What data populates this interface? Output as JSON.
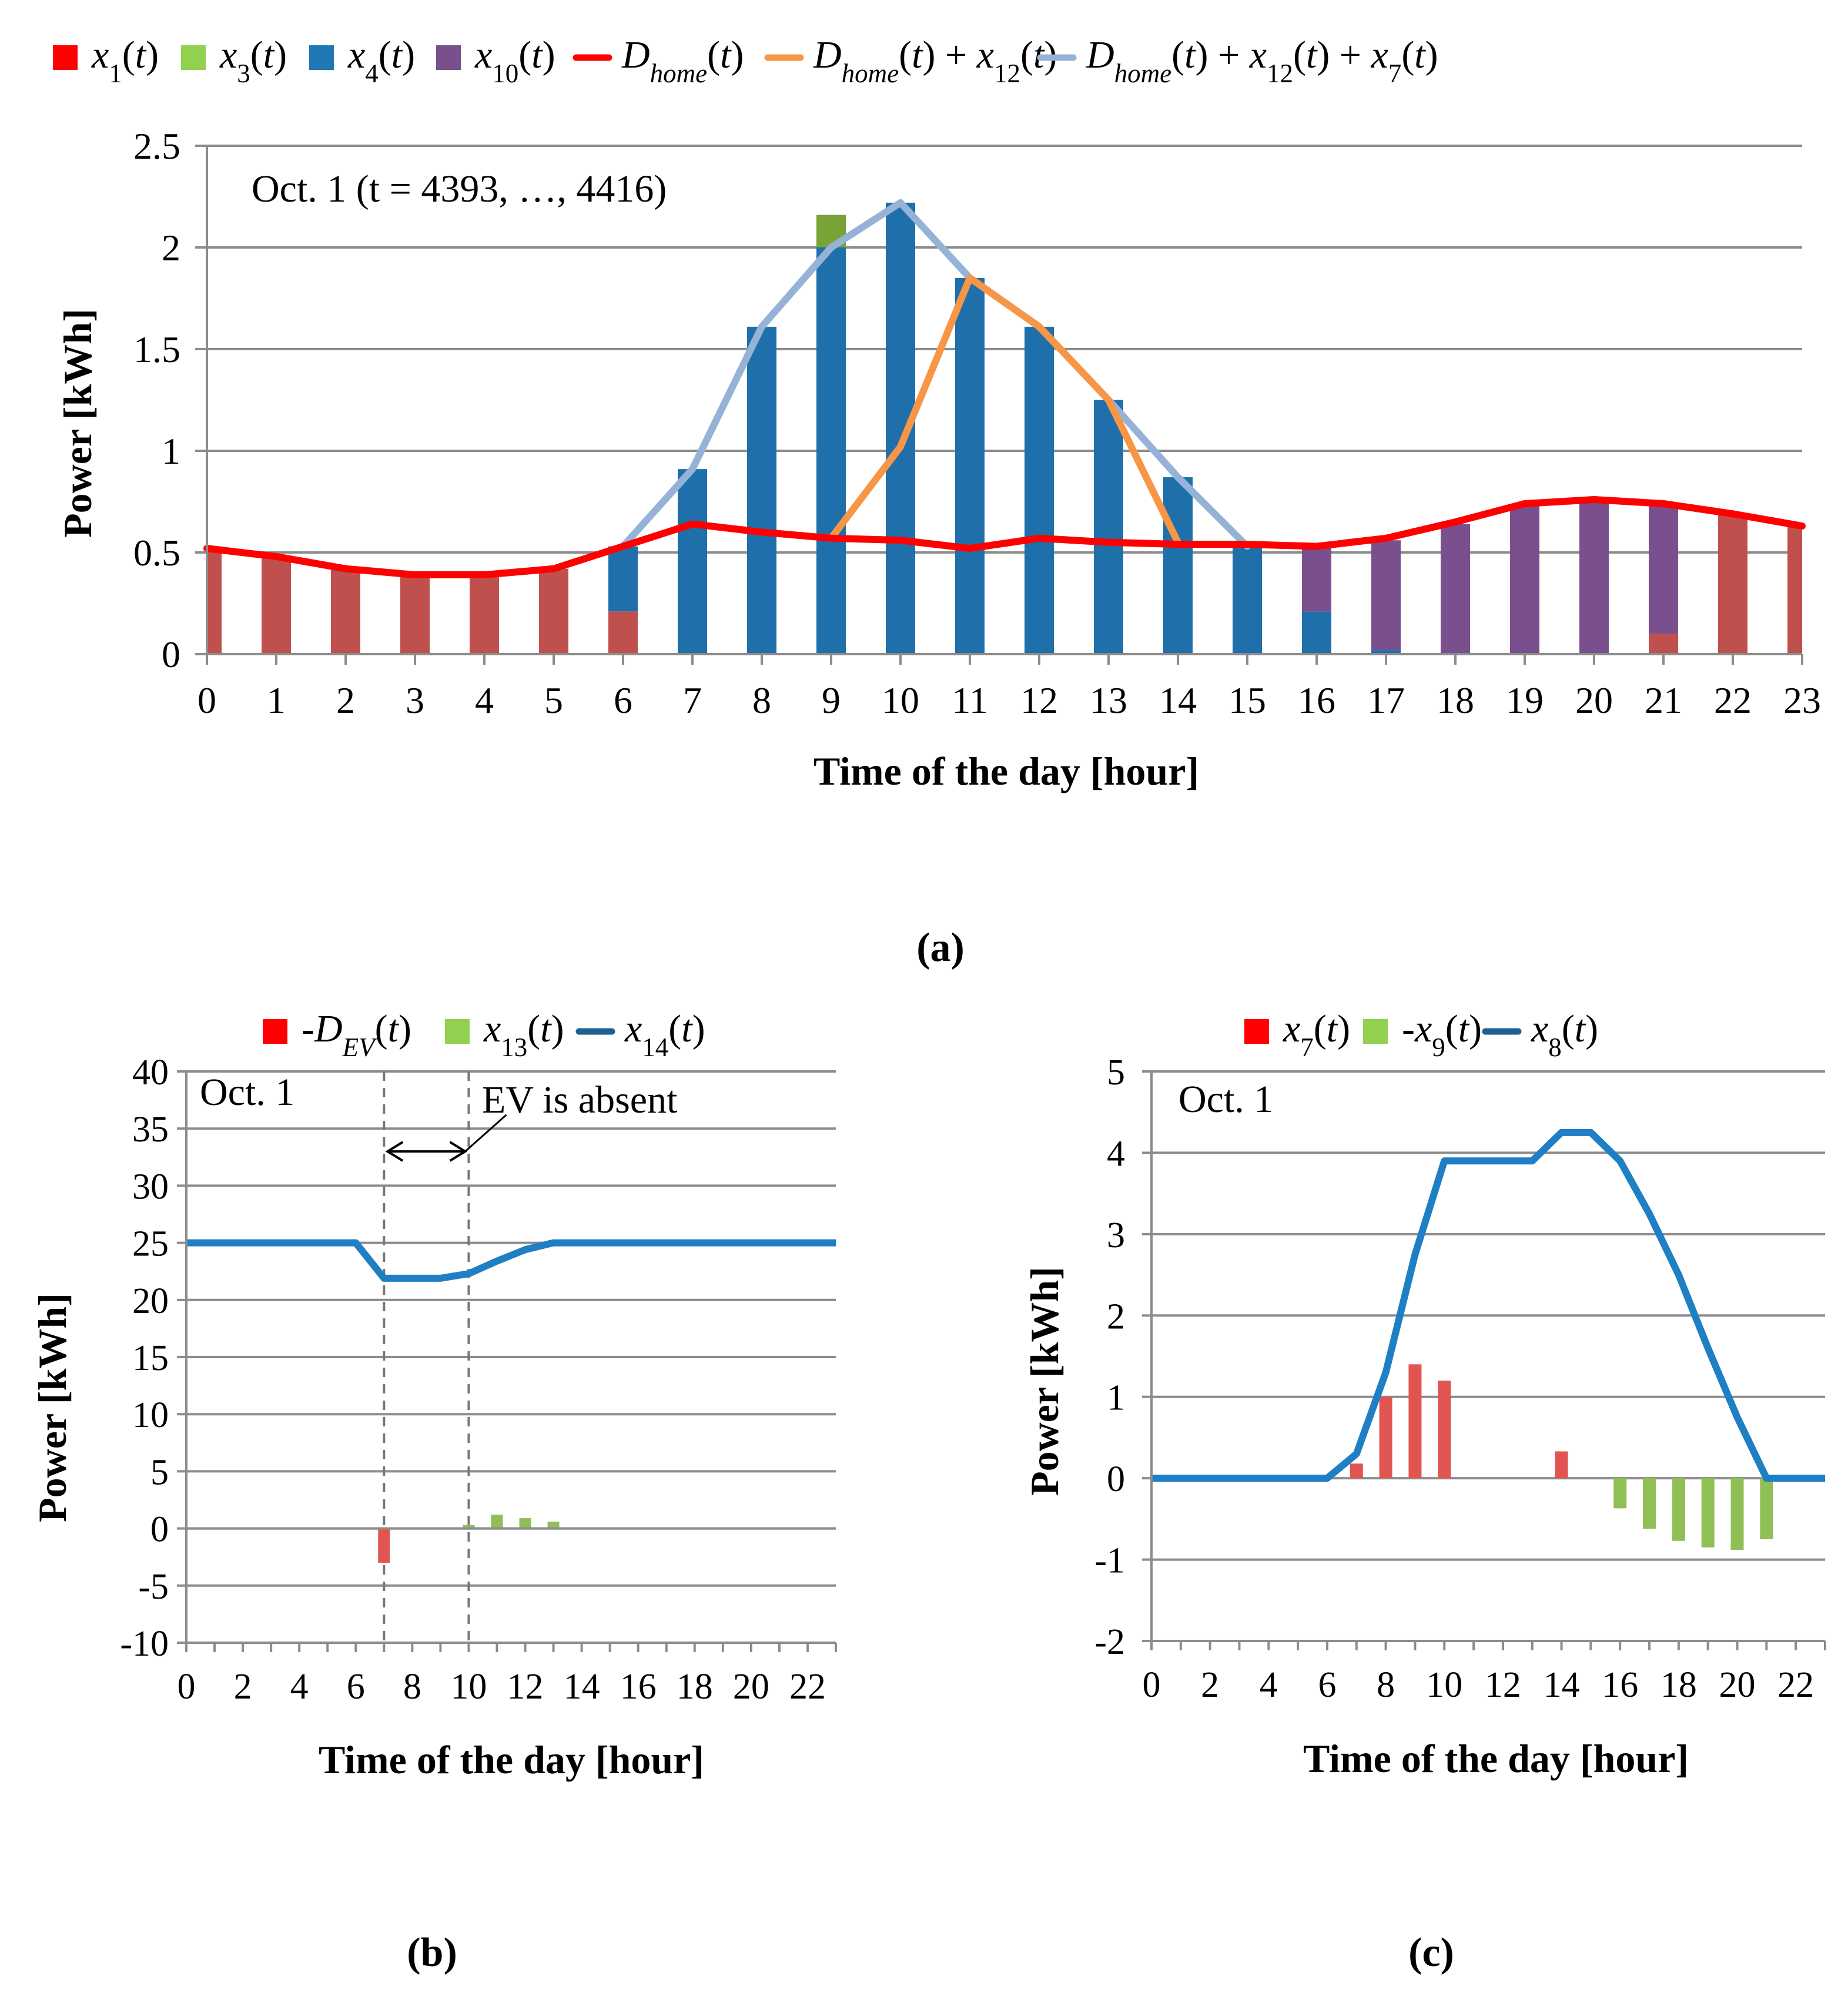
{
  "panel_labels": [
    "(a)",
    "(b)",
    "(c)"
  ],
  "chart_data": [
    {
      "id": "a",
      "type": "bar",
      "stacked": true,
      "annotation": "Oct. 1 (t = 4393, …, 4416)",
      "xlabel": "Time of the day [hour]",
      "ylabel": "Power [kWh]",
      "ylim": [
        0,
        2.5
      ],
      "yticks": [
        0,
        0.5,
        1,
        1.5,
        2,
        2.5
      ],
      "ytick_labels": [
        "0",
        "0.5",
        "1",
        "1.5",
        "2",
        "2.5"
      ],
      "categories": [
        "0",
        "1",
        "2",
        "3",
        "4",
        "5",
        "6",
        "7",
        "8",
        "9",
        "10",
        "11",
        "12",
        "13",
        "14",
        "15",
        "16",
        "17",
        "18",
        "19",
        "20",
        "21",
        "22",
        "23"
      ],
      "legend": [
        {
          "key": "x1",
          "kind": "bar",
          "color": "#ff0000",
          "parts": [
            {
              "t": "x",
              "s": "i"
            },
            {
              "t": "1",
              "s": "sub"
            },
            {
              "t": "(",
              "s": "n"
            },
            {
              "t": "t",
              "s": "i"
            },
            {
              "t": ")",
              "s": "n"
            }
          ]
        },
        {
          "key": "x3",
          "kind": "bar",
          "color": "#92d050",
          "parts": [
            {
              "t": "x",
              "s": "i"
            },
            {
              "t": "3",
              "s": "sub"
            },
            {
              "t": "(",
              "s": "n"
            },
            {
              "t": "t",
              "s": "i"
            },
            {
              "t": ")",
              "s": "n"
            }
          ]
        },
        {
          "key": "x4",
          "kind": "bar",
          "color": "#1f77b4",
          "parts": [
            {
              "t": "x",
              "s": "i"
            },
            {
              "t": "4",
              "s": "sub"
            },
            {
              "t": "(",
              "s": "n"
            },
            {
              "t": "t",
              "s": "i"
            },
            {
              "t": ")",
              "s": "n"
            }
          ]
        },
        {
          "key": "x10",
          "kind": "bar",
          "color": "#7a4f8e",
          "parts": [
            {
              "t": "x",
              "s": "i"
            },
            {
              "t": "10",
              "s": "sub"
            },
            {
              "t": "(",
              "s": "n"
            },
            {
              "t": "t",
              "s": "i"
            },
            {
              "t": ")",
              "s": "n"
            }
          ]
        },
        {
          "key": "dhome",
          "kind": "line",
          "color": "#ff0000",
          "parts": [
            {
              "t": "D",
              "s": "i"
            },
            {
              "t": "home",
              "s": "isub"
            },
            {
              "t": "(",
              "s": "n"
            },
            {
              "t": "t",
              "s": "i"
            },
            {
              "t": ")",
              "s": "n"
            }
          ]
        },
        {
          "key": "dh_x12",
          "kind": "line",
          "color": "#f79646",
          "parts": [
            {
              "t": "D",
              "s": "i"
            },
            {
              "t": "home",
              "s": "isub"
            },
            {
              "t": "(",
              "s": "n"
            },
            {
              "t": "t",
              "s": "i"
            },
            {
              "t": ") + ",
              "s": "n"
            },
            {
              "t": "x",
              "s": "i"
            },
            {
              "t": "12",
              "s": "sub"
            },
            {
              "t": "(",
              "s": "n"
            },
            {
              "t": "t",
              "s": "i"
            },
            {
              "t": ")",
              "s": "n"
            }
          ]
        },
        {
          "key": "dh_x12_x7",
          "kind": "line",
          "color": "#95b3d7",
          "parts": [
            {
              "t": "D",
              "s": "i"
            },
            {
              "t": "home",
              "s": "isub"
            },
            {
              "t": "(",
              "s": "n"
            },
            {
              "t": "t",
              "s": "i"
            },
            {
              "t": ") + ",
              "s": "n"
            },
            {
              "t": "x",
              "s": "i"
            },
            {
              "t": "12",
              "s": "sub"
            },
            {
              "t": "(",
              "s": "n"
            },
            {
              "t": "t",
              "s": "i"
            },
            {
              "t": ") + ",
              "s": "n"
            },
            {
              "t": "x",
              "s": "i"
            },
            {
              "t": "7",
              "s": "sub"
            },
            {
              "t": "(",
              "s": "n"
            },
            {
              "t": "t",
              "s": "i"
            },
            {
              "t": ")",
              "s": "n"
            }
          ]
        }
      ],
      "bar_series": [
        {
          "name": "x1(t)",
          "color": "#c0504d",
          "values": [
            0.52,
            0.48,
            0.42,
            0.39,
            0.39,
            0.42,
            0.21,
            0,
            0,
            0,
            0,
            0,
            0,
            0,
            0,
            0,
            0,
            0,
            0,
            0,
            0,
            0.1,
            0.69,
            0.63
          ]
        },
        {
          "name": "x4(t)",
          "color": "#1f6fab",
          "values": [
            0,
            0,
            0,
            0,
            0,
            0,
            0.32,
            0.91,
            1.61,
            2.0,
            2.22,
            1.85,
            1.61,
            1.25,
            0.87,
            0.53,
            0.21,
            0.02,
            0,
            0,
            0,
            0,
            0,
            0
          ]
        },
        {
          "name": "x3(t)",
          "color": "#77a337",
          "values": [
            0,
            0,
            0,
            0,
            0,
            0,
            0,
            0,
            0,
            0.16,
            0,
            0,
            0,
            0,
            0,
            0,
            0,
            0,
            0,
            0,
            0,
            0,
            0,
            0
          ]
        },
        {
          "name": "x10(t)",
          "color": "#7a4f8e",
          "values": [
            0,
            0,
            0,
            0,
            0,
            0,
            0,
            0,
            0,
            0,
            0,
            0,
            0,
            0,
            0,
            0,
            0.32,
            0.54,
            0.64,
            0.73,
            0.76,
            0.63,
            0,
            0
          ]
        }
      ],
      "line_series": [
        {
          "name": "Dhome(t) + x12(t) + x7(t)",
          "color": "#95b3d7",
          "x": [
            6,
            7,
            8,
            9,
            10,
            11,
            12,
            13,
            14,
            15
          ],
          "y": [
            0.53,
            0.91,
            1.61,
            2.0,
            2.22,
            1.85,
            1.61,
            1.25,
            0.87,
            0.53
          ]
        },
        {
          "name": "Dhome(t) + x12(t)",
          "color": "#f79646",
          "x": [
            9,
            10,
            11,
            12,
            13,
            14
          ],
          "y": [
            0.57,
            1.02,
            1.85,
            1.61,
            1.25,
            0.55
          ]
        },
        {
          "name": "Dhome(t)",
          "color": "#ff0000",
          "x": [
            0,
            1,
            2,
            3,
            4,
            5,
            6,
            7,
            8,
            9,
            10,
            11,
            12,
            13,
            14,
            15,
            16,
            17,
            18,
            19,
            20,
            21,
            22,
            23
          ],
          "y": [
            0.52,
            0.48,
            0.42,
            0.39,
            0.39,
            0.42,
            0.53,
            0.64,
            0.6,
            0.57,
            0.56,
            0.52,
            0.57,
            0.55,
            0.54,
            0.54,
            0.53,
            0.57,
            0.65,
            0.74,
            0.76,
            0.74,
            0.69,
            0.63
          ]
        }
      ]
    },
    {
      "id": "b",
      "type": "bar",
      "annotation": "Oct. 1",
      "annotation2": "EV is absent",
      "xlabel": "Time of the day [hour]",
      "ylabel": "Power [kWh]",
      "ylim": [
        -10,
        40
      ],
      "yticks": [
        -10,
        -5,
        0,
        5,
        10,
        15,
        20,
        25,
        30,
        35,
        40
      ],
      "ytick_labels": [
        "-10",
        "-5",
        "0",
        "5",
        "10",
        "15",
        "20",
        "25",
        "30",
        "35",
        "40"
      ],
      "xlim": [
        0,
        23
      ],
      "xticks": [
        0,
        2,
        4,
        6,
        8,
        10,
        12,
        14,
        16,
        18,
        20,
        22
      ],
      "xtick_labels": [
        "0",
        "2",
        "4",
        "6",
        "8",
        "10",
        "12",
        "14",
        "16",
        "18",
        "20",
        "22"
      ],
      "absent_interval": [
        7,
        10
      ],
      "legend": [
        {
          "key": "dev",
          "kind": "bar",
          "color": "#ff0000",
          "parts": [
            {
              "t": "-",
              "s": "n"
            },
            {
              "t": "D",
              "s": "i"
            },
            {
              "t": "EV",
              "s": "isub"
            },
            {
              "t": "(",
              "s": "n"
            },
            {
              "t": "t",
              "s": "i"
            },
            {
              "t": ")",
              "s": "n"
            }
          ]
        },
        {
          "key": "x13",
          "kind": "bar",
          "color": "#92d050",
          "parts": [
            {
              "t": "x",
              "s": "i"
            },
            {
              "t": "13",
              "s": "sub"
            },
            {
              "t": "(",
              "s": "n"
            },
            {
              "t": "t",
              "s": "i"
            },
            {
              "t": ")",
              "s": "n"
            }
          ]
        },
        {
          "key": "x14",
          "kind": "line",
          "color": "#1f5f8f",
          "parts": [
            {
              "t": "x",
              "s": "i"
            },
            {
              "t": "14",
              "s": "sub"
            },
            {
              "t": "(",
              "s": "n"
            },
            {
              "t": "t",
              "s": "i"
            },
            {
              "t": ")",
              "s": "n"
            }
          ]
        }
      ],
      "bar_series": [
        {
          "name": "-DEV(t)",
          "color": "#e05552",
          "x": [
            7
          ],
          "values": [
            -3.0
          ]
        },
        {
          "name": "x13(t)",
          "color": "#8fbf55",
          "x": [
            10,
            11,
            12,
            13
          ],
          "values": [
            0.3,
            1.2,
            0.9,
            0.6
          ]
        }
      ],
      "line_series": [
        {
          "name": "x14(t)",
          "color": "#1f7fc4",
          "x": [
            0,
            1,
            2,
            3,
            4,
            5,
            6,
            7,
            8,
            9,
            10,
            11,
            12,
            13,
            14,
            15,
            16,
            17,
            18,
            19,
            20,
            21,
            22,
            23
          ],
          "y": [
            25,
            25,
            25,
            25,
            25,
            25,
            25,
            21.9,
            21.9,
            21.9,
            22.3,
            23.4,
            24.4,
            25,
            25,
            25,
            25,
            25,
            25,
            25,
            25,
            25,
            25,
            25
          ]
        }
      ]
    },
    {
      "id": "c",
      "type": "bar",
      "annotation": "Oct. 1",
      "xlabel": "Time of the day [hour]",
      "ylabel": "Power [kWh]",
      "ylim": [
        -2,
        5
      ],
      "yticks": [
        -2,
        -1,
        0,
        1,
        2,
        3,
        4,
        5
      ],
      "ytick_labels": [
        "-2",
        "-1",
        "0",
        "1",
        "2",
        "3",
        "4",
        "5"
      ],
      "xlim": [
        0,
        23
      ],
      "xticks": [
        0,
        2,
        4,
        6,
        8,
        10,
        12,
        14,
        16,
        18,
        20,
        22
      ],
      "xtick_labels": [
        "0",
        "2",
        "4",
        "6",
        "8",
        "10",
        "12",
        "14",
        "16",
        "18",
        "20",
        "22"
      ],
      "legend": [
        {
          "key": "x7",
          "kind": "bar",
          "color": "#ff0000",
          "parts": [
            {
              "t": "x",
              "s": "i"
            },
            {
              "t": "7",
              "s": "sub"
            },
            {
              "t": "(",
              "s": "n"
            },
            {
              "t": "t",
              "s": "i"
            },
            {
              "t": ")",
              "s": "n"
            }
          ]
        },
        {
          "key": "x9",
          "kind": "bar",
          "color": "#92d050",
          "parts": [
            {
              "t": "-",
              "s": "n"
            },
            {
              "t": "x",
              "s": "i"
            },
            {
              "t": "9",
              "s": "sub"
            },
            {
              "t": "(",
              "s": "n"
            },
            {
              "t": "t",
              "s": "i"
            },
            {
              "t": ")",
              "s": "n"
            }
          ]
        },
        {
          "key": "x8",
          "kind": "line",
          "color": "#1f5f8f",
          "parts": [
            {
              "t": "x",
              "s": "i"
            },
            {
              "t": "8",
              "s": "sub"
            },
            {
              "t": "(",
              "s": "n"
            },
            {
              "t": "t",
              "s": "i"
            },
            {
              "t": ")",
              "s": "n"
            }
          ]
        }
      ],
      "bar_series": [
        {
          "name": "x7(t)",
          "color": "#e05552",
          "x": [
            7,
            8,
            9,
            10,
            14
          ],
          "values": [
            0.18,
            1.0,
            1.4,
            1.2,
            0.33
          ]
        },
        {
          "name": "-x9(t)",
          "color": "#8fbf55",
          "x": [
            16,
            17,
            18,
            19,
            20,
            21
          ],
          "values": [
            -0.37,
            -0.62,
            -0.77,
            -0.85,
            -0.88,
            -0.75
          ]
        }
      ],
      "line_series": [
        {
          "name": "x8(t)",
          "color": "#1f7fc4",
          "x": [
            0,
            1,
            2,
            3,
            4,
            5,
            6,
            7,
            8,
            9,
            10,
            11,
            12,
            13,
            14,
            15,
            16,
            17,
            18,
            19,
            20,
            21,
            22,
            23
          ],
          "y": [
            0,
            0,
            0,
            0,
            0,
            0,
            0,
            0.3,
            1.3,
            2.75,
            3.9,
            3.9,
            3.9,
            3.9,
            4.25,
            4.25,
            3.9,
            3.25,
            2.5,
            1.6,
            0.75,
            0,
            0,
            0
          ]
        }
      ]
    }
  ]
}
